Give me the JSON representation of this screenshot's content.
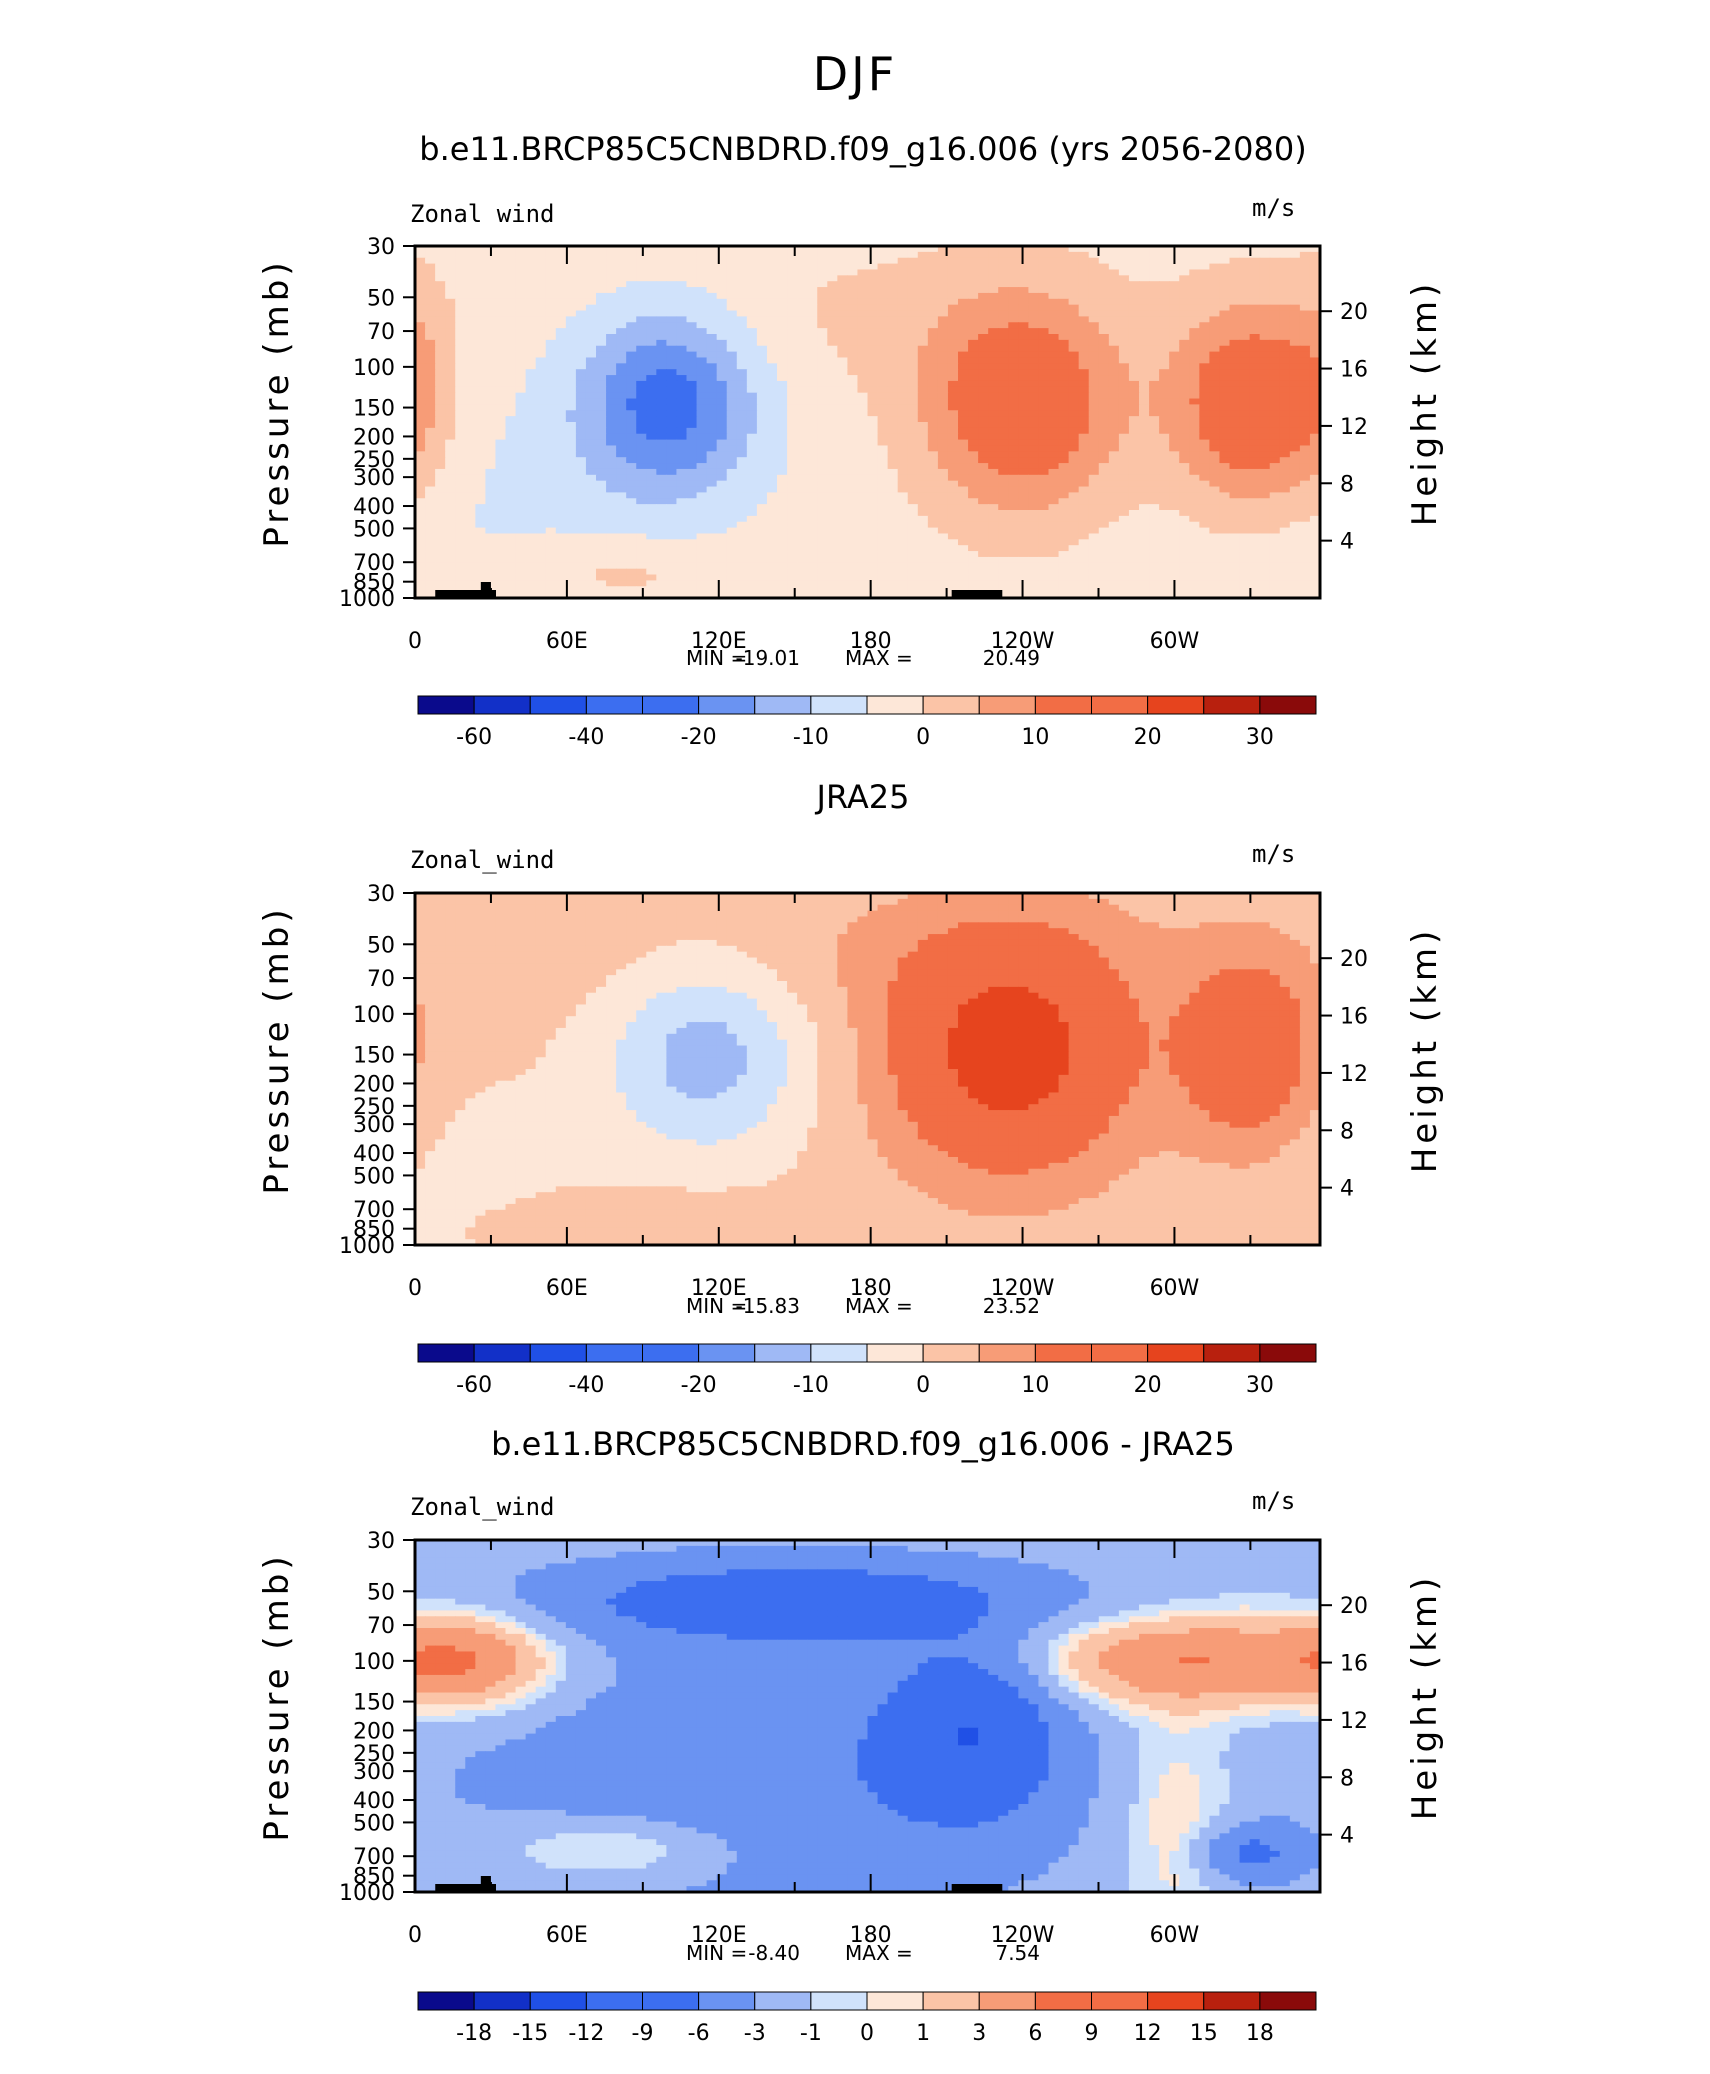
{
  "figure": {
    "season_title": "DJF",
    "colors": {
      "frame": "#000000",
      "land": "#000000",
      "palette_main": [
        "#0a0a8c",
        "#1230c8",
        "#2050e6",
        "#3c6ef0",
        "#6a93f2",
        "#9fb9f5",
        "#d0e2fb",
        "#fde7d8",
        "#fbc4a7",
        "#f79c77",
        "#f26d45",
        "#e6441e",
        "#b8200e",
        "#8a0a0a"
      ],
      "palette_diff": [
        "#0a0a8c",
        "#1230c8",
        "#2050e6",
        "#3c6ef0",
        "#6a93f2",
        "#9fb9f5",
        "#d0e2fb",
        "#fde7d8",
        "#fbc4a7",
        "#f79c77",
        "#f26d45",
        "#e6441e",
        "#b8200e",
        "#8a0a0a"
      ]
    }
  },
  "chart_data": [
    {
      "type": "heatmap",
      "title": "b.e11.BRCP85C5CNBDRD.f09_g16.006 (yrs 2056-2080)",
      "left_label": "Zonal wind",
      "right_label": "m/s",
      "ylabel": "Pressure (mb)",
      "y2label": "Height (km)",
      "xticks": [
        "0",
        "60E",
        "120E",
        "180",
        "120W",
        "60W"
      ],
      "xtick_lon": [
        0,
        60,
        120,
        180,
        240,
        300
      ],
      "xlim": [
        0,
        357.5
      ],
      "yticks": [
        "30",
        "50",
        "70",
        "100",
        "150",
        "200",
        "250",
        "300",
        "400",
        "500",
        "700",
        "850",
        "1000"
      ],
      "yticks_p": [
        30,
        50,
        70,
        100,
        150,
        200,
        250,
        300,
        400,
        500,
        700,
        850,
        1000
      ],
      "y2ticks": [
        "20",
        "16",
        "12",
        "8",
        "4"
      ],
      "y2ticks_km": [
        20,
        16,
        12,
        8,
        4
      ],
      "ylim": [
        1000,
        30
      ],
      "stats": {
        "min_label": "MIN =",
        "min": "-19.01",
        "max_label": "MAX =",
        "max": "20.49"
      },
      "colorbar_labels": [
        "-60",
        "-40",
        "-20",
        "-10",
        "0",
        "10",
        "20",
        "30"
      ],
      "colorbar_bins": 16,
      "features": [
        {
          "lon": 100,
          "p": 140,
          "a": -20,
          "wx": 25,
          "wy": 0.33
        },
        {
          "lon": 240,
          "p": 150,
          "a": 19,
          "wx": 28,
          "wy": 0.38
        },
        {
          "lon": 330,
          "p": 150,
          "a": 20,
          "wx": 22,
          "wy": 0.36
        },
        {
          "lon": 0,
          "p": 120,
          "a": 6,
          "wx": 12,
          "wy": 0.4
        },
        {
          "lon": 80,
          "p": 780,
          "a": 5,
          "wx": 30,
          "wy": 0.12
        },
        {
          "lon": 175,
          "p": 60,
          "a": 3,
          "wx": 70,
          "wy": 0.3
        },
        {
          "lon": 30,
          "p": 400,
          "a": -3,
          "wx": 60,
          "wy": 0.5
        }
      ],
      "base": -2.5,
      "land_segments": [
        [
          8,
          32
        ],
        [
          26,
          30
        ],
        [
          212,
          232
        ]
      ]
    },
    {
      "type": "heatmap",
      "title": "JRA25",
      "left_label": "Zonal_wind",
      "right_label": "m/s",
      "ylabel": "Pressure (mb)",
      "y2label": "Height (km)",
      "xticks": [
        "0",
        "60E",
        "120E",
        "180",
        "120W",
        "60W"
      ],
      "xtick_lon": [
        0,
        60,
        120,
        180,
        240,
        300
      ],
      "xlim": [
        0,
        357.5
      ],
      "yticks": [
        "30",
        "50",
        "70",
        "100",
        "150",
        "200",
        "250",
        "300",
        "400",
        "500",
        "700",
        "850",
        "1000"
      ],
      "yticks_p": [
        30,
        50,
        70,
        100,
        150,
        200,
        250,
        300,
        400,
        500,
        700,
        850,
        1000
      ],
      "y2ticks": [
        "20",
        "16",
        "12",
        "8",
        "4"
      ],
      "y2ticks_km": [
        20,
        16,
        12,
        8,
        4
      ],
      "ylim": [
        1000,
        30
      ],
      "stats": {
        "min_label": "MIN =",
        "min": "-15.83",
        "max_label": "MAX =",
        "max": "23.52"
      },
      "colorbar_labels": [
        "-60",
        "-40",
        "-20",
        "-10",
        "0",
        "10",
        "20",
        "30"
      ],
      "colorbar_bins": 16,
      "features": [
        {
          "lon": 115,
          "p": 150,
          "a": -14,
          "wx": 28,
          "wy": 0.35
        },
        {
          "lon": 235,
          "p": 150,
          "a": 23,
          "wx": 34,
          "wy": 0.42
        },
        {
          "lon": 330,
          "p": 150,
          "a": 16,
          "wx": 20,
          "wy": 0.35
        },
        {
          "lon": 90,
          "p": 800,
          "a": 4,
          "wx": 40,
          "wy": 0.1
        },
        {
          "lon": 20,
          "p": 500,
          "a": -3,
          "wx": 40,
          "wy": 0.4
        },
        {
          "lon": 180,
          "p": 55,
          "a": 3,
          "wx": 100,
          "wy": 0.25
        }
      ],
      "base": 1.5,
      "land_segments": []
    },
    {
      "type": "heatmap",
      "title": "b.e11.BRCP85C5CNBDRD.f09_g16.006 - JRA25",
      "left_label": "Zonal_wind",
      "right_label": "m/s",
      "ylabel": "Pressure (mb)",
      "y2label": "Height (km)",
      "xticks": [
        "0",
        "60E",
        "120E",
        "180",
        "120W",
        "60W"
      ],
      "xtick_lon": [
        0,
        60,
        120,
        180,
        240,
        300
      ],
      "xlim": [
        0,
        357.5
      ],
      "yticks": [
        "30",
        "50",
        "70",
        "100",
        "150",
        "200",
        "250",
        "300",
        "400",
        "500",
        "700",
        "850",
        "1000"
      ],
      "yticks_p": [
        30,
        50,
        70,
        100,
        150,
        200,
        250,
        300,
        400,
        500,
        700,
        850,
        1000
      ],
      "y2ticks": [
        "20",
        "16",
        "12",
        "8",
        "4"
      ],
      "y2ticks_km": [
        20,
        16,
        12,
        8,
        4
      ],
      "ylim": [
        1000,
        30
      ],
      "stats": {
        "min_label": "MIN =",
        "min": "-8.40",
        "max_label": "MAX =",
        "max": "7.54"
      },
      "colorbar_labels": [
        "-18",
        "-15",
        "-12",
        "-9",
        "-6",
        "-3",
        "-1",
        "0",
        "1",
        "3",
        "6",
        "9",
        "12",
        "15",
        "18"
      ],
      "colorbar_bins": 16,
      "features": [
        {
          "lon": 220,
          "p": 200,
          "a": -8.4,
          "wx": 22,
          "wy": 0.28
        },
        {
          "lon": 150,
          "p": 55,
          "a": -7,
          "wx": 70,
          "wy": 0.15
        },
        {
          "lon": 20,
          "p": 100,
          "a": 7,
          "wx": 25,
          "wy": 0.17
        },
        {
          "lon": 305,
          "p": 100,
          "a": 7.5,
          "wx": 45,
          "wy": 0.16
        },
        {
          "lon": 80,
          "p": 650,
          "a": 4,
          "wx": 35,
          "wy": 0.12
        },
        {
          "lon": 300,
          "p": 500,
          "a": 3,
          "wx": 15,
          "wy": 0.4
        },
        {
          "lon": 140,
          "p": 350,
          "a": -4,
          "wx": 90,
          "wy": 0.5
        },
        {
          "lon": 330,
          "p": 680,
          "a": -5,
          "wx": 15,
          "wy": 0.1
        }
      ],
      "base": -1.5,
      "land_segments": [
        [
          8,
          32
        ],
        [
          26,
          30
        ],
        [
          212,
          232
        ]
      ]
    }
  ]
}
